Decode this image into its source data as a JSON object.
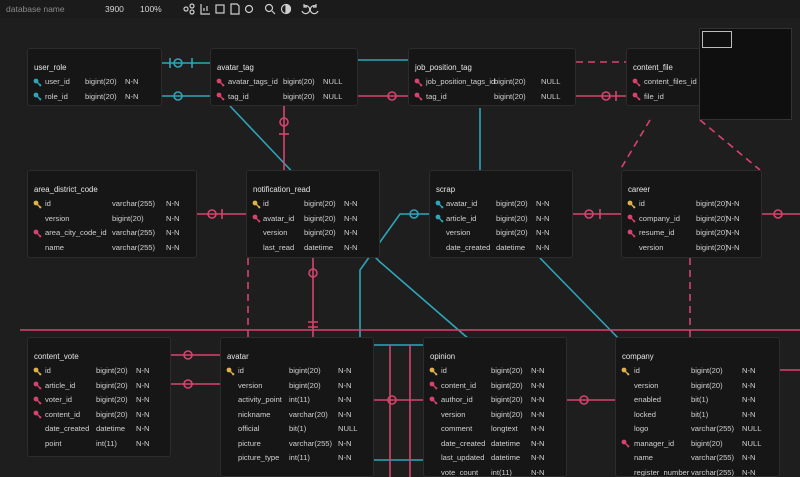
{
  "toolbar": {
    "database_name": "database name",
    "size": "3900",
    "zoom": "100%"
  },
  "key_colors": {
    "primary": "#e0b24a",
    "foreign": "#d8436d",
    "unique": "#2fa5b8"
  },
  "tables": [
    {
      "name": "user_role",
      "columns": [
        {
          "key": "unique",
          "name": "user_id",
          "type": "bigint(20)",
          "null": "N-N"
        },
        {
          "key": "unique",
          "name": "role_id",
          "type": "bigint(20)",
          "null": "N-N"
        }
      ]
    },
    {
      "name": "avatar_tag",
      "columns": [
        {
          "key": "foreign",
          "name": "avatar_tags_id",
          "type": "bigint(20)",
          "null": "NULL"
        },
        {
          "key": "foreign",
          "name": "tag_id",
          "type": "bigint(20)",
          "null": "NULL"
        }
      ]
    },
    {
      "name": "job_position_tag",
      "columns": [
        {
          "key": "foreign",
          "name": "job_position_tags_id",
          "type": "bigint(20)",
          "null": "NULL"
        },
        {
          "key": "foreign",
          "name": "tag_id",
          "type": "bigint(20)",
          "null": "NULL"
        }
      ]
    },
    {
      "name": "content_file",
      "columns": [
        {
          "key": "foreign",
          "name": "content_files_id"
        },
        {
          "key": "foreign",
          "name": "file_id"
        }
      ]
    },
    {
      "name": "area_district_code",
      "columns": [
        {
          "key": "primary",
          "name": "id",
          "type": "varchar(255)",
          "null": "N-N"
        },
        {
          "name": "version",
          "type": "bigint(20)",
          "null": "N-N"
        },
        {
          "key": "foreign",
          "name": "area_city_code_id",
          "type": "varchar(255)",
          "null": "N-N"
        },
        {
          "name": "name",
          "type": "varchar(255)",
          "null": "N-N"
        }
      ]
    },
    {
      "name": "notification_read",
      "columns": [
        {
          "key": "primary",
          "name": "id",
          "type": "bigint(20)",
          "null": "N-N"
        },
        {
          "key": "foreign",
          "name": "avatar_id",
          "type": "bigint(20)",
          "null": "N-N"
        },
        {
          "name": "version",
          "type": "bigint(20)",
          "null": "N-N"
        },
        {
          "name": "last_read",
          "type": "datetime",
          "null": "N-N"
        }
      ]
    },
    {
      "name": "scrap",
      "columns": [
        {
          "key": "unique",
          "name": "avatar_id",
          "type": "bigint(20)",
          "null": "N-N"
        },
        {
          "key": "unique",
          "name": "article_id",
          "type": "bigint(20)",
          "null": "N-N"
        },
        {
          "name": "version",
          "type": "bigint(20)",
          "null": "N-N"
        },
        {
          "name": "date_created",
          "type": "datetime",
          "null": "N-N"
        }
      ]
    },
    {
      "name": "career",
      "columns": [
        {
          "key": "primary",
          "name": "id",
          "type": "bigint(20)",
          "null": "N-N"
        },
        {
          "key": "foreign",
          "name": "company_id",
          "type": "bigint(20)",
          "null": "N-N"
        },
        {
          "key": "foreign",
          "name": "resume_id",
          "type": "bigint(20)",
          "null": "N-N"
        },
        {
          "name": "version",
          "type": "bigint(20)",
          "null": "N-N"
        }
      ]
    },
    {
      "name": "content_vote",
      "columns": [
        {
          "key": "primary",
          "name": "id",
          "type": "bigint(20)",
          "null": "N-N"
        },
        {
          "key": "foreign",
          "name": "article_id",
          "type": "bigint(20)",
          "null": "N-N"
        },
        {
          "key": "foreign",
          "name": "voter_id",
          "type": "bigint(20)",
          "null": "N-N"
        },
        {
          "key": "foreign",
          "name": "content_id",
          "type": "bigint(20)",
          "null": "N-N"
        },
        {
          "name": "date_created",
          "type": "datetime",
          "null": "N-N"
        },
        {
          "name": "point",
          "type": "int(11)",
          "null": "N-N"
        }
      ]
    },
    {
      "name": "avatar",
      "columns": [
        {
          "key": "primary",
          "name": "id",
          "type": "bigint(20)",
          "null": "N-N"
        },
        {
          "name": "version",
          "type": "bigint(20)",
          "null": "N-N"
        },
        {
          "name": "activity_point",
          "type": "int(11)",
          "null": "N-N"
        },
        {
          "name": "nickname",
          "type": "varchar(20)",
          "null": "N-N"
        },
        {
          "name": "official",
          "type": "bit(1)",
          "null": "NULL"
        },
        {
          "name": "picture",
          "type": "varchar(255)",
          "null": "N-N"
        },
        {
          "name": "picture_type",
          "type": "int(11)",
          "null": "N-N"
        }
      ]
    },
    {
      "name": "opinion",
      "columns": [
        {
          "key": "primary",
          "name": "id",
          "type": "bigint(20)",
          "null": "N-N"
        },
        {
          "key": "foreign",
          "name": "content_id",
          "type": "bigint(20)",
          "null": "N-N"
        },
        {
          "key": "foreign",
          "name": "author_id",
          "type": "bigint(20)",
          "null": "N-N"
        },
        {
          "name": "version",
          "type": "bigint(20)",
          "null": "N-N"
        },
        {
          "name": "comment",
          "type": "longtext",
          "null": "N-N"
        },
        {
          "name": "date_created",
          "type": "datetime",
          "null": "N-N"
        },
        {
          "name": "last_updated",
          "type": "datetime",
          "null": "N-N"
        },
        {
          "name": "vote_count",
          "type": "int(11)",
          "null": "N-N"
        }
      ]
    },
    {
      "name": "company",
      "columns": [
        {
          "key": "primary",
          "name": "id",
          "type": "bigint(20)",
          "null": "N-N"
        },
        {
          "name": "version",
          "type": "bigint(20)",
          "null": "N-N"
        },
        {
          "name": "enabled",
          "type": "bit(1)",
          "null": "N-N"
        },
        {
          "name": "locked",
          "type": "bit(1)",
          "null": "N-N"
        },
        {
          "name": "logo",
          "type": "varchar(255)",
          "null": "NULL"
        },
        {
          "key": "foreign",
          "name": "manager_id",
          "type": "bigint(20)",
          "null": "NULL"
        },
        {
          "name": "name",
          "type": "varchar(255)",
          "null": "N-N"
        },
        {
          "name": "register_number",
          "type": "varchar(255)",
          "null": "N-N"
        }
      ]
    }
  ]
}
